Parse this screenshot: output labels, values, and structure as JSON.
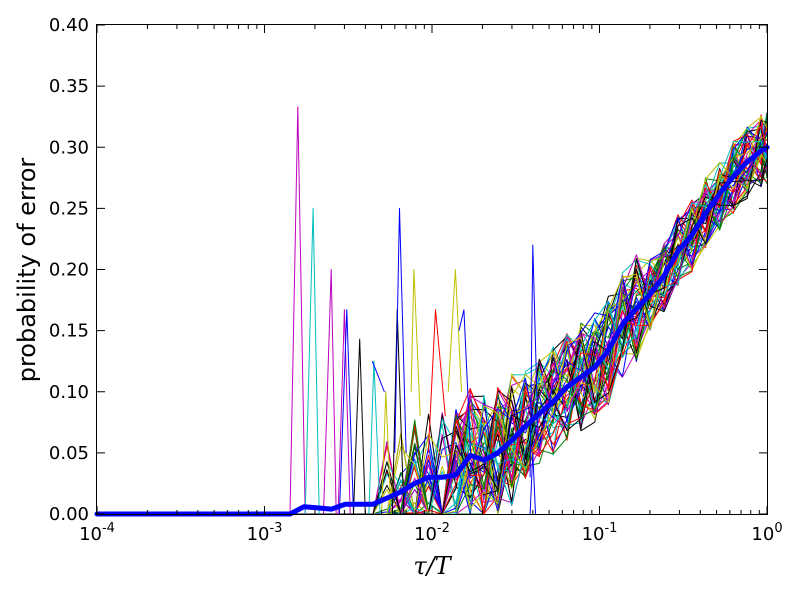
{
  "chart_data": {
    "type": "line",
    "xlabel": "τ/T",
    "ylabel": "probability of error",
    "x_scale": "log",
    "xlim": [
      0.0001,
      1
    ],
    "ylim": [
      0.0,
      0.4
    ],
    "grid": false,
    "x_ticks": [
      {
        "value": 0.0001,
        "base": "10",
        "exp": "-4"
      },
      {
        "value": 0.001,
        "base": "10",
        "exp": "-3"
      },
      {
        "value": 0.01,
        "base": "10",
        "exp": "-2"
      },
      {
        "value": 0.1,
        "base": "10",
        "exp": "-1"
      },
      {
        "value": 1,
        "base": "10",
        "exp": "0"
      }
    ],
    "y_ticks": [
      {
        "value": 0.0,
        "label": "0.00"
      },
      {
        "value": 0.05,
        "label": "0.05"
      },
      {
        "value": 0.1,
        "label": "0.10"
      },
      {
        "value": 0.15,
        "label": "0.15"
      },
      {
        "value": 0.2,
        "label": "0.20"
      },
      {
        "value": 0.25,
        "label": "0.25"
      },
      {
        "value": 0.3,
        "label": "0.30"
      },
      {
        "value": 0.35,
        "label": "0.35"
      },
      {
        "value": 0.4,
        "label": "0.40"
      }
    ],
    "x": [
      0.0001,
      0.00012,
      0.000145,
      0.000175,
      0.00021,
      0.000255,
      0.00031,
      0.000375,
      0.00045,
      0.000545,
      0.00066,
      0.0008,
      0.00097,
      0.00117,
      0.00142,
      0.00172,
      0.00208,
      0.00251,
      0.00304,
      0.00368,
      0.00445,
      0.00538,
      0.00651,
      0.00788,
      0.00953,
      0.0115,
      0.0139,
      0.0169,
      0.0204,
      0.0247,
      0.0299,
      0.0361,
      0.0437,
      0.0529,
      0.064,
      0.0774,
      0.0937,
      0.113,
      0.137,
      0.166,
      0.201,
      0.243,
      0.294,
      0.356,
      0.43,
      0.521,
      0.63,
      0.762,
      0.922,
      1.0
    ],
    "mean": [
      0,
      0,
      0,
      0,
      0,
      0,
      0,
      0,
      0,
      0,
      0,
      0,
      0,
      0,
      0,
      0.006,
      0.005,
      0.004,
      0.008,
      0.008,
      0.008,
      0.013,
      0.018,
      0.025,
      0.03,
      0.03,
      0.032,
      0.048,
      0.044,
      0.05,
      0.06,
      0.072,
      0.082,
      0.092,
      0.104,
      0.112,
      0.12,
      0.134,
      0.155,
      0.168,
      0.18,
      0.195,
      0.215,
      0.228,
      0.246,
      0.262,
      0.276,
      0.288,
      0.297,
      0.3
    ],
    "mean_color": "#0000ff",
    "series_colors": [
      "#0000ff",
      "#008000",
      "#ff0000",
      "#00bfbf",
      "#bf00bf",
      "#bfbf00",
      "#000000"
    ],
    "series_count": 56,
    "spike_series": [
      {
        "color": "#bf00bf",
        "points": [
          [
            0.00142,
            0
          ],
          [
            0.00158,
            0.333
          ],
          [
            0.00175,
            0
          ]
        ]
      },
      {
        "color": "#00bfbf",
        "points": [
          [
            0.00175,
            0
          ],
          [
            0.00195,
            0.25
          ],
          [
            0.00212,
            0
          ]
        ]
      },
      {
        "color": "#bf00bf",
        "points": [
          [
            0.00225,
            0
          ],
          [
            0.0025,
            0.2
          ],
          [
            0.00268,
            0
          ]
        ]
      },
      {
        "color": "#bf00bf",
        "points": [
          [
            0.00275,
            0
          ],
          [
            0.003,
            0.167
          ],
          [
            0.00325,
            0
          ]
        ]
      },
      {
        "color": "#0000ff",
        "points": [
          [
            0.0028,
            0
          ],
          [
            0.0031,
            0.167
          ],
          [
            0.0034,
            0
          ]
        ]
      },
      {
        "color": "#000000",
        "points": [
          [
            0.0034,
            0
          ],
          [
            0.0037,
            0.143
          ],
          [
            0.004,
            0
          ]
        ]
      },
      {
        "color": "#00bfbf",
        "points": [
          [
            0.0042,
            0
          ],
          [
            0.0045,
            0.125
          ],
          [
            0.0049,
            0
          ]
        ]
      },
      {
        "color": "#0000ff",
        "points": [
          [
            0.0044,
            0.125
          ],
          [
            0.0052,
            0.1
          ]
        ]
      },
      {
        "color": "#bfbf00",
        "points": [
          [
            0.005,
            0
          ],
          [
            0.0053,
            0.1
          ],
          [
            0.0057,
            0
          ]
        ]
      },
      {
        "color": "#000000",
        "points": [
          [
            0.0058,
            0
          ],
          [
            0.0062,
            0.167
          ],
          [
            0.0068,
            0
          ]
        ]
      },
      {
        "color": "#0000ff",
        "points": [
          [
            0.006,
            0.05
          ],
          [
            0.0064,
            0.25
          ],
          [
            0.007,
            0.05
          ]
        ]
      },
      {
        "color": "#bfbf00",
        "points": [
          [
            0.0075,
            0.1
          ],
          [
            0.0078,
            0.2
          ],
          [
            0.0085,
            0.08
          ]
        ]
      },
      {
        "color": "#ff0000",
        "points": [
          [
            0.0095,
            0.05
          ],
          [
            0.0105,
            0.167
          ],
          [
            0.012,
            0.08
          ]
        ]
      },
      {
        "color": "#bfbf00",
        "points": [
          [
            0.0125,
            0.1
          ],
          [
            0.0138,
            0.2
          ],
          [
            0.015,
            0.1
          ]
        ]
      },
      {
        "color": "#0000ff",
        "points": [
          [
            0.0145,
            0.15
          ],
          [
            0.0155,
            0.167
          ],
          [
            0.017,
            0.05
          ]
        ]
      },
      {
        "color": "#0000ff",
        "points": [
          [
            0.0385,
            0.03
          ],
          [
            0.04,
            0.22
          ],
          [
            0.043,
            0.06
          ]
        ]
      },
      {
        "color": "#0000ff",
        "points": [
          [
            0.0385,
            0.0
          ],
          [
            0.04,
            0.05
          ],
          [
            0.0415,
            0.0
          ]
        ]
      }
    ]
  }
}
